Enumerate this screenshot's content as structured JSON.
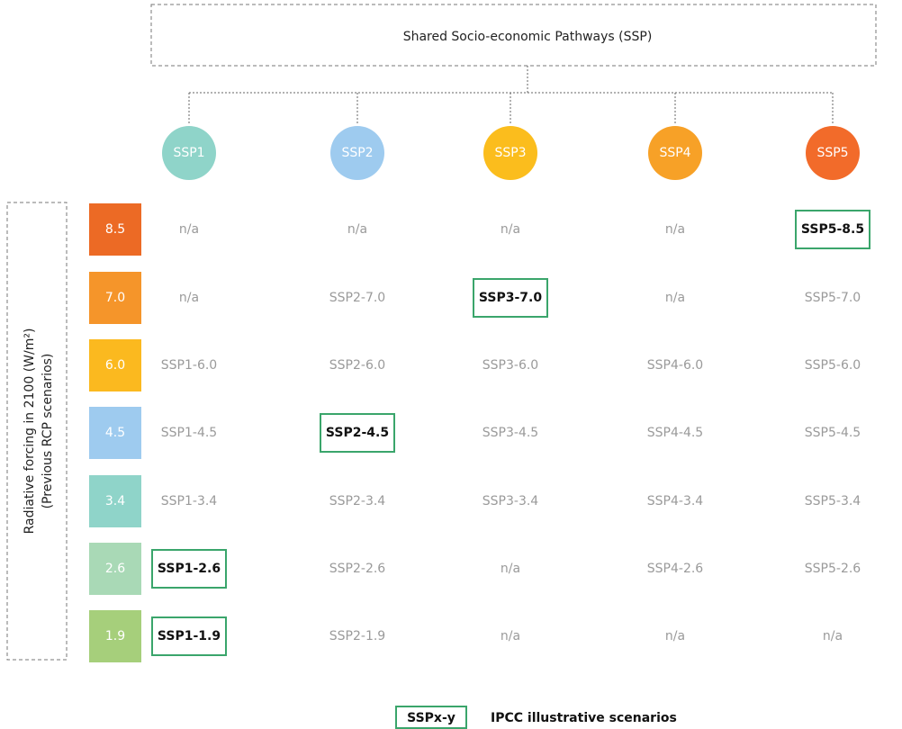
{
  "header": {
    "title": "Shared Socio-economic Pathways (SSP)"
  },
  "pathways": [
    {
      "label": "SSP1",
      "color": "#8fd4c9"
    },
    {
      "label": "SSP2",
      "color": "#9ecbef"
    },
    {
      "label": "SSP3",
      "color": "#fbbd1d"
    },
    {
      "label": "SSP4",
      "color": "#f7a127"
    },
    {
      "label": "SSP5",
      "color": "#f26b2a"
    }
  ],
  "axis_label": [
    "Radiative forcing in 2100 (W/m²)",
    "(Previous RCP scenarios)"
  ],
  "rows": [
    {
      "level": "8.5",
      "color": "#ec6a25",
      "cells": [
        {
          "label": "n/a"
        },
        {
          "label": "n/a"
        },
        {
          "label": "n/a"
        },
        {
          "label": "n/a"
        },
        {
          "label": "SSP5-8.5",
          "illustrative": true
        }
      ]
    },
    {
      "level": "7.0",
      "color": "#f5952a",
      "cells": [
        {
          "label": "n/a"
        },
        {
          "label": "SSP2-7.0"
        },
        {
          "label": "SSP3-7.0",
          "illustrative": true
        },
        {
          "label": "n/a"
        },
        {
          "label": "SSP5-7.0"
        }
      ]
    },
    {
      "level": "6.0",
      "color": "#fbb91f",
      "cells": [
        {
          "label": "SSP1-6.0"
        },
        {
          "label": "SSP2-6.0"
        },
        {
          "label": "SSP3-6.0"
        },
        {
          "label": "SSP4-6.0"
        },
        {
          "label": "SSP5-6.0"
        }
      ]
    },
    {
      "level": "4.5",
      "color": "#9ecbef",
      "cells": [
        {
          "label": "SSP1-4.5"
        },
        {
          "label": "SSP2-4.5",
          "illustrative": true
        },
        {
          "label": "SSP3-4.5"
        },
        {
          "label": "SSP4-4.5"
        },
        {
          "label": "SSP5-4.5"
        }
      ]
    },
    {
      "level": "3.4",
      "color": "#8fd4c9",
      "cells": [
        {
          "label": "SSP1-3.4"
        },
        {
          "label": "SSP2-3.4"
        },
        {
          "label": "SSP3-3.4"
        },
        {
          "label": "SSP4-3.4"
        },
        {
          "label": "SSP5-3.4"
        }
      ]
    },
    {
      "level": "2.6",
      "color": "#a9d9b6",
      "cells": [
        {
          "label": "SSP1-2.6",
          "illustrative": true
        },
        {
          "label": "SSP2-2.6"
        },
        {
          "label": "n/a"
        },
        {
          "label": "SSP4-2.6"
        },
        {
          "label": "SSP5-2.6"
        }
      ]
    },
    {
      "level": "1.9",
      "color": "#a6cf7b",
      "cells": [
        {
          "label": "SSP1-1.9",
          "illustrative": true
        },
        {
          "label": "SSP2-1.9"
        },
        {
          "label": "n/a"
        },
        {
          "label": "n/a"
        },
        {
          "label": "n/a"
        }
      ]
    }
  ],
  "legend": {
    "sample": "SSPx-y",
    "text": "IPCC illustrative scenarios",
    "color": "#3aa56b"
  }
}
